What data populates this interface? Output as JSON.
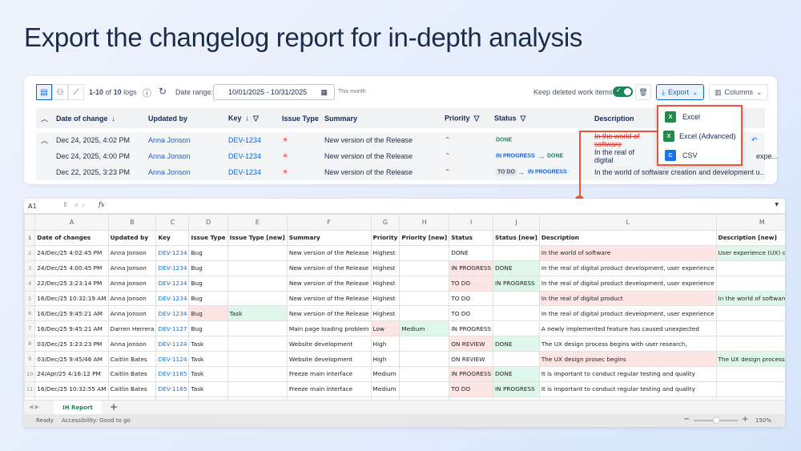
{
  "title": "Export the changelog report for in-depth analysis",
  "toolbar": {
    "count_prefix": "1-10",
    "count_of": "of",
    "count_total": "10",
    "count_suffix": "logs",
    "date_range_label": "Date range:",
    "date_range_value": "10/01/2025 - 10/31/2025",
    "date_hint": "This month",
    "keep_deleted_label": "Keep deleted work items",
    "keep_deleted_on": true,
    "export_label": "Export",
    "columns_label": "Columns"
  },
  "export_menu": [
    "Excel",
    "Excel (Advanced)",
    "CSV"
  ],
  "table": {
    "headers": [
      "Date of change",
      "Updated by",
      "Key",
      "Issue Type",
      "Summary",
      "Priority",
      "Status",
      "Description"
    ],
    "rows": [
      {
        "date": "Dec 24, 2025, 4:02 PM",
        "user": "Anna Jonson",
        "key": "DEV-1234",
        "summary": "New version of the Release",
        "status_from": "",
        "status_to": "DONE",
        "description": "In the world of software"
      },
      {
        "date": "Dec 24, 2025, 4:00 PM",
        "user": "Anna Jonson",
        "key": "DEV-1234",
        "summary": "New version of the Release",
        "status_from": "IN PROGRESS",
        "status_to": "DONE",
        "description": "In the real of digital",
        "description_tail": "expe..."
      },
      {
        "date": "Dec 22, 2025, 3:23 PM",
        "user": "Anna Jonson",
        "key": "DEV-1234",
        "summary": "New version of the Release",
        "status_from": "TO DO",
        "status_to": "IN PROGRESS",
        "description": "In the world of software creation and development u..."
      }
    ]
  },
  "sheet": {
    "cell_ref": "A1",
    "fx": "fx",
    "col_letters": [
      "A",
      "B",
      "C",
      "D",
      "E",
      "F",
      "G",
      "H",
      "I",
      "J",
      "L",
      "M"
    ],
    "headers": [
      "Date of changes",
      "Updated by",
      "Key",
      "Issue Type",
      "Issue Type [new]",
      "Summary",
      "Priority",
      "Priority [new]",
      "Status",
      "Status [new]",
      "Description",
      "Description [new]"
    ],
    "rows": [
      [
        "24/Dec/25 4:02:45 PM",
        "Anna Jonson",
        "DEV-1234",
        "Bug",
        "",
        "New version of the Release",
        "Highest",
        "",
        "DONE",
        "",
        "In the world of software",
        "User experience (UX) design"
      ],
      [
        "24/Dec/25 4:00:45 PM",
        "Anna Jonson",
        "DEV-1234",
        "Bug",
        "",
        "New version of the Release",
        "Highest",
        "",
        "IN PROGRESS",
        "DONE",
        "In the real of digital product development, user experience",
        ""
      ],
      [
        "22/Dec/25 3:23:14 PM",
        "Anna Jonson",
        "DEV-1234",
        "Bug",
        "",
        "New version of the Release",
        "Highest",
        "",
        "TO DO",
        "IN PROGRESS",
        "In the real of digital product development, user experience",
        ""
      ],
      [
        "16/Dec/25 10:32:19 AM",
        "Anna Jonson",
        "DEV-1234",
        "Bug",
        "",
        "New version of the Release",
        "Highest",
        "",
        "TO DO",
        "",
        "In the real of digital product",
        "In the world of software"
      ],
      [
        "16/Dec/25 9:45:21 AM",
        "Anna Jonson",
        "DEV-1234",
        "Bug",
        "Task",
        "New version of the Release",
        "Highest",
        "",
        "TO DO",
        "",
        "In the real of digital product development, user experience",
        ""
      ],
      [
        "16/Dec/25 9:45:21 AM",
        "Darren Herrera",
        "DEV-1127",
        "Bug",
        "",
        "Main page loading problem",
        "Low",
        "Medium",
        "IN PROGRESS",
        "",
        "A newly implemented feature has caused unexpected",
        ""
      ],
      [
        "03/Dec/25 3:23:23 PM",
        "Anna Jonson",
        "DEV-1124",
        "Task",
        "",
        "Website development",
        "High",
        "",
        "ON REVIEW",
        "DONE",
        "The UX design process begins with user research,",
        ""
      ],
      [
        "03/Dec/25 9:45/46 AM",
        "Caitlin Bates",
        "DEV-1124",
        "Task",
        "",
        "Website development",
        "High",
        "",
        "ON REVIEW",
        "",
        "The UX design prosec begins",
        "The UX design process begins"
      ],
      [
        "24/Apr/25 4:16:12 PM",
        "Caitlin Bates",
        "DEV-1165",
        "Task",
        "",
        "Freeze main interface",
        "Medium",
        "",
        "IN PROGRESS",
        "DONE",
        "It is important to conduct regular testing and quality",
        ""
      ],
      [
        "16/Dec/25 10:32:55 AM",
        "Caitlin Bates",
        "DEV-1165",
        "Task",
        "",
        "Freeze main interface",
        "Medium",
        "",
        "TO DO",
        "IN PROGRESS",
        "It is important to conduct regular testing and quality",
        ""
      ]
    ],
    "tab_name": "IH Report",
    "status_ready": "Ready",
    "status_accessibility": "Accessibility: Good to go",
    "zoom": "150%",
    "zoom_fraction": 0.5
  },
  "colors": {
    "accent": "#0c66e4",
    "highlight": "#e8553a",
    "changed_old": "#fde5e4",
    "changed_new": "#dff7ea",
    "excel_green": "#1f8b4c",
    "csv_blue": "#1a73e8"
  }
}
